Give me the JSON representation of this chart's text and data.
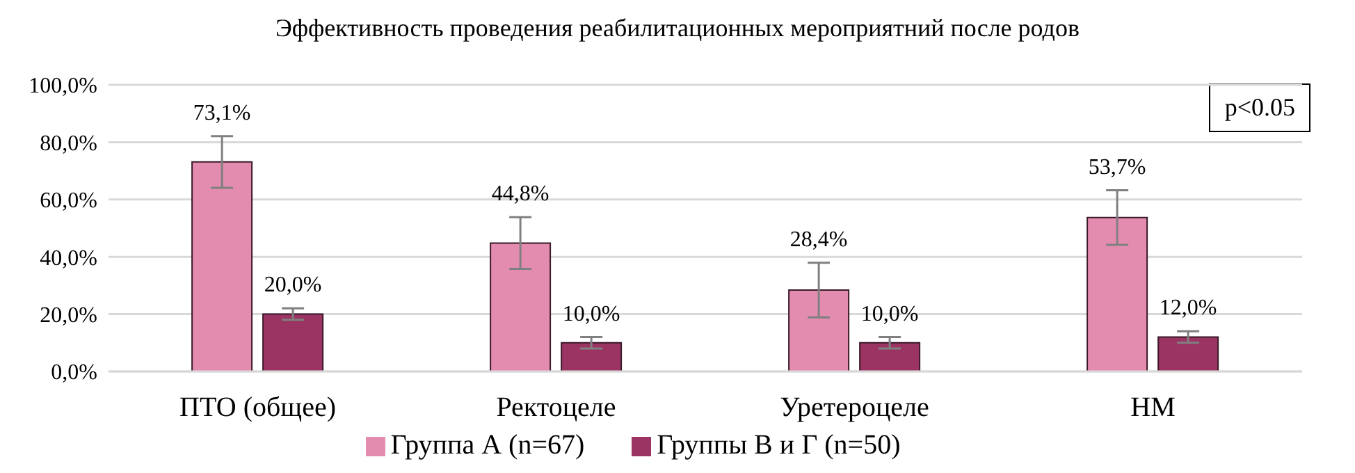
{
  "chart_data": {
    "type": "bar",
    "title": "Эффективность проведения реабилитационных мероприятний после родов",
    "categories": [
      "ПТО (общее)",
      "Ректоцеле",
      "Уретероцеле",
      "НМ"
    ],
    "series": [
      {
        "name": "Группа А (n=67)",
        "color": "#e48caf",
        "values": [
          73.1,
          44.8,
          28.4,
          53.7
        ],
        "errors": [
          9,
          9,
          9.5,
          9.5
        ],
        "value_labels": [
          "73,1%",
          "44,8%",
          "28,4%",
          "53,7%"
        ]
      },
      {
        "name": "Группы В и Г (n=50)",
        "color": "#9b3463",
        "values": [
          20.0,
          10.0,
          10.0,
          12.0
        ],
        "errors": [
          2,
          2,
          2,
          2
        ],
        "value_labels": [
          "20,0%",
          "10,0%",
          "10,0%",
          "12,0%"
        ]
      }
    ],
    "ylim": [
      0,
      100
    ],
    "yticks": [
      {
        "value": 0,
        "label": "0,0%"
      },
      {
        "value": 20,
        "label": "20,0%"
      },
      {
        "value": 40,
        "label": "40,0%"
      },
      {
        "value": 60,
        "label": "60,0%"
      },
      {
        "value": 80,
        "label": "80,0%"
      },
      {
        "value": 100,
        "label": "100,0%"
      }
    ],
    "grid": "y",
    "legend": "bottom",
    "annotations": [
      "p<0.05"
    ]
  }
}
